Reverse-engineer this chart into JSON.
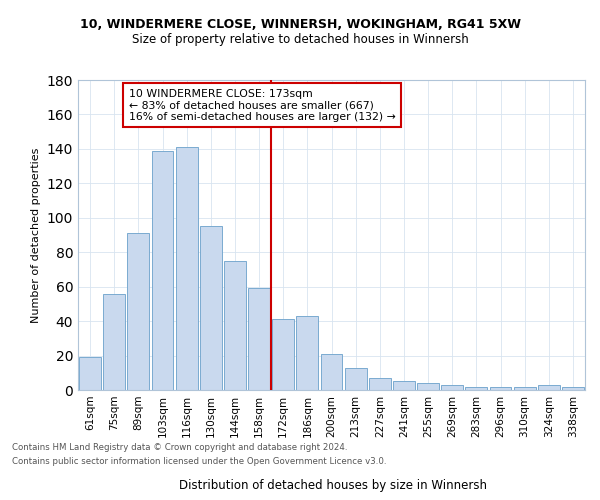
{
  "title1": "10, WINDERMERE CLOSE, WINNERSH, WOKINGHAM, RG41 5XW",
  "title2": "Size of property relative to detached houses in Winnersh",
  "xlabel": "Distribution of detached houses by size in Winnersh",
  "ylabel": "Number of detached properties",
  "categories": [
    "61sqm",
    "75sqm",
    "89sqm",
    "103sqm",
    "116sqm",
    "130sqm",
    "144sqm",
    "158sqm",
    "172sqm",
    "186sqm",
    "200sqm",
    "213sqm",
    "227sqm",
    "241sqm",
    "255sqm",
    "269sqm",
    "283sqm",
    "296sqm",
    "310sqm",
    "324sqm",
    "338sqm"
  ],
  "values": [
    19,
    56,
    91,
    139,
    141,
    95,
    75,
    59,
    41,
    43,
    21,
    13,
    7,
    5,
    4,
    3,
    2,
    2,
    2,
    3,
    2
  ],
  "bar_color": "#c9d9ee",
  "bar_edge_color": "#7aaad0",
  "red_line_index": 8,
  "annotation_text": "10 WINDERMERE CLOSE: 173sqm\n← 83% of detached houses are smaller (667)\n16% of semi-detached houses are larger (132) →",
  "annotation_box_color": "#ffffff",
  "annotation_box_edge_color": "#cc0000",
  "red_line_color": "#cc0000",
  "ylim": [
    0,
    180
  ],
  "yticks": [
    0,
    20,
    40,
    60,
    80,
    100,
    120,
    140,
    160,
    180
  ],
  "footer1": "Contains HM Land Registry data © Crown copyright and database right 2024.",
  "footer2": "Contains public sector information licensed under the Open Government Licence v3.0.",
  "bg_color": "#ffffff",
  "grid_color": "#d8e4f0"
}
